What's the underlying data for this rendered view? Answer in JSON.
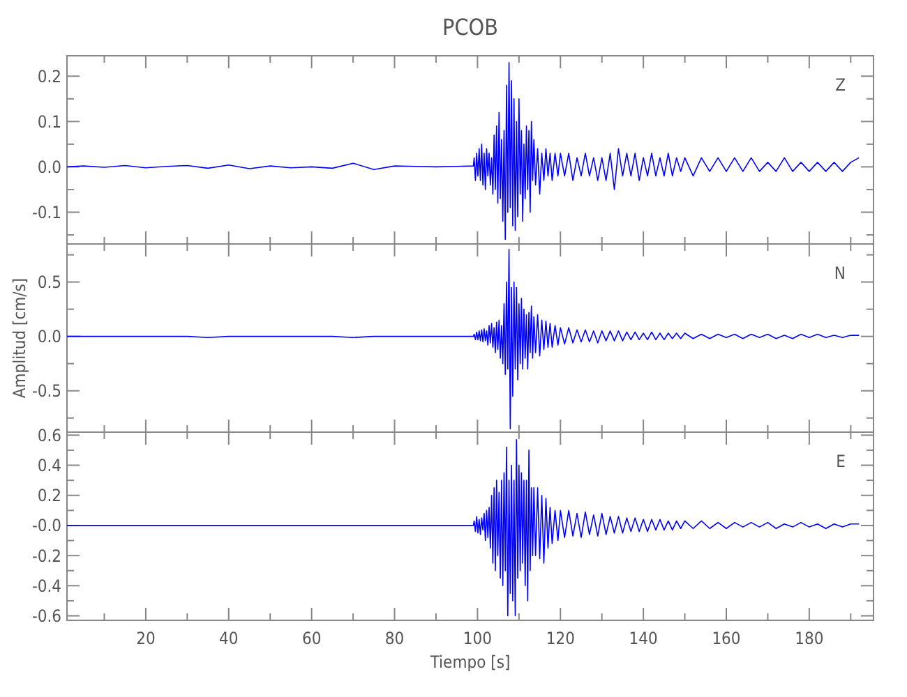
{
  "chart_data": [
    {
      "type": "line",
      "title": "PCOB",
      "annotations": [
        "Z"
      ],
      "tick_labels": "y",
      "x": [
        1,
        5,
        10,
        15,
        20,
        25,
        30,
        35,
        40,
        45,
        50,
        55,
        60,
        65,
        70,
        75,
        80,
        85,
        90,
        95,
        99,
        99.2,
        99.5,
        99.8,
        100.1,
        100.4,
        100.7,
        101,
        101.3,
        101.6,
        101.9,
        102.2,
        102.5,
        102.8,
        103.1,
        103.4,
        103.7,
        104,
        104.3,
        104.6,
        104.9,
        105.2,
        105.5,
        105.8,
        106.1,
        106.4,
        106.7,
        107,
        107.3,
        107.6,
        107.9,
        108.2,
        108.5,
        108.8,
        109.1,
        109.4,
        109.7,
        110,
        110.3,
        110.6,
        110.9,
        111.2,
        111.5,
        111.8,
        112.1,
        112.4,
        112.7,
        113,
        113.3,
        113.6,
        114,
        114.5,
        115,
        115.5,
        116,
        116.5,
        117,
        117.5,
        118,
        118.7,
        119.4,
        120,
        121,
        122,
        123,
        124,
        125,
        126,
        127,
        128,
        129,
        130,
        131,
        132,
        133,
        134,
        135,
        136,
        137,
        138,
        139,
        140,
        141,
        142,
        143,
        144,
        145,
        146,
        147,
        148,
        149,
        150,
        152,
        154,
        156,
        158,
        160,
        162,
        164,
        166,
        168,
        170,
        172,
        174,
        176,
        178,
        180,
        182,
        184,
        186,
        188,
        190,
        192
      ],
      "series": [
        {
          "color": "#0000ff",
          "values": [
            0,
            0.002,
            -0.001,
            0.003,
            -0.002,
            0.001,
            0.003,
            -0.003,
            0.004,
            -0.004,
            0.002,
            -0.002,
            0,
            -0.003,
            0.008,
            -0.006,
            0.002,
            0.001,
            0,
            0.001,
            0.002,
            0.02,
            -0.03,
            0.03,
            -0.02,
            0.04,
            -0.03,
            0.05,
            -0.04,
            0.03,
            -0.05,
            0.04,
            -0.02,
            0.03,
            -0.04,
            0.02,
            -0.06,
            0.07,
            -0.05,
            0.09,
            -0.08,
            0.12,
            -0.07,
            0.06,
            -0.12,
            0.08,
            -0.16,
            0.18,
            -0.1,
            0.23,
            -0.09,
            0.19,
            -0.13,
            0.15,
            -0.14,
            0.1,
            -0.11,
            0.15,
            -0.06,
            0.08,
            -0.12,
            0.05,
            -0.07,
            0.09,
            -0.05,
            0.08,
            -0.1,
            0.1,
            -0.03,
            0.06,
            -0.04,
            0.04,
            -0.06,
            0.03,
            -0.03,
            0.04,
            -0.02,
            0.03,
            -0.03,
            0.03,
            -0.02,
            0.03,
            -0.02,
            0.03,
            -0.03,
            0.02,
            -0.02,
            0.03,
            -0.02,
            0.02,
            -0.03,
            0.02,
            -0.03,
            0.03,
            -0.05,
            0.04,
            -0.02,
            0.03,
            -0.02,
            0.03,
            -0.03,
            0.02,
            -0.02,
            0.03,
            -0.02,
            0.02,
            -0.02,
            0.03,
            -0.02,
            0.02,
            -0.01,
            0.02,
            -0.02,
            0.02,
            -0.01,
            0.02,
            -0.01,
            0.02,
            -0.01,
            0.02,
            -0.01,
            0.01,
            -0.01,
            0.02,
            -0.01,
            0.01,
            -0.01,
            0.01,
            -0.01,
            0.01,
            -0.01,
            0.01,
            0.02
          ]
        }
      ],
      "xlim": [
        1,
        195.5
      ],
      "ylim": [
        -0.17,
        0.245
      ],
      "xticks": [
        {
          "value": 10,
          "label": null
        },
        20,
        {
          "value": 30,
          "label": null
        },
        40,
        {
          "value": 50,
          "label": null
        },
        60,
        {
          "value": 70,
          "label": null
        },
        80,
        {
          "value": 90,
          "label": null
        },
        100,
        {
          "value": 110,
          "label": null
        },
        120,
        {
          "value": 130,
          "label": null
        },
        140,
        {
          "value": 150,
          "label": null
        },
        160,
        {
          "value": 170,
          "label": null
        },
        180,
        {
          "value": 190,
          "label": null
        }
      ],
      "yticks": [
        {
          "value": -0.15,
          "label": null
        },
        -0.1,
        {
          "value": -0.05,
          "label": null
        },
        {
          "value": 0,
          "label": "0.0"
        },
        {
          "value": 0.05,
          "label": null
        },
        0.1,
        {
          "value": 0.15,
          "label": null
        },
        0.2
      ]
    },
    {
      "type": "line",
      "ylabel": "Amplitud [cm/s]",
      "annotations": [
        "N"
      ],
      "tick_labels": "y",
      "x": [
        1,
        5,
        10,
        15,
        20,
        25,
        30,
        35,
        40,
        45,
        50,
        55,
        60,
        65,
        70,
        75,
        80,
        85,
        90,
        95,
        99,
        99.2,
        99.5,
        99.8,
        100.1,
        100.4,
        100.7,
        101,
        101.3,
        101.6,
        101.9,
        102.2,
        102.5,
        102.8,
        103.1,
        103.4,
        103.7,
        104,
        104.3,
        104.6,
        104.9,
        105.2,
        105.5,
        105.8,
        106.1,
        106.4,
        106.7,
        107,
        107.3,
        107.6,
        107.9,
        108.2,
        108.5,
        108.8,
        109.1,
        109.4,
        109.7,
        110,
        110.3,
        110.6,
        110.9,
        111.2,
        111.5,
        111.8,
        112.1,
        112.4,
        112.7,
        113,
        113.3,
        113.6,
        114,
        114.5,
        115,
        115.5,
        116,
        116.5,
        117,
        117.5,
        118,
        118.7,
        119.4,
        120,
        121,
        122,
        123,
        124,
        125,
        126,
        127,
        128,
        129,
        130,
        131,
        132,
        133,
        134,
        135,
        136,
        137,
        138,
        139,
        140,
        141,
        142,
        143,
        144,
        145,
        146,
        147,
        148,
        149,
        150,
        152,
        154,
        156,
        158,
        160,
        162,
        164,
        166,
        168,
        170,
        172,
        174,
        176,
        178,
        180,
        182,
        184,
        186,
        188,
        190,
        192
      ],
      "series": [
        {
          "color": "#0000ff",
          "values": [
            0,
            0,
            0,
            0,
            0,
            0,
            0,
            -0.01,
            0,
            0,
            0,
            0,
            0,
            0,
            -0.01,
            0,
            0,
            0,
            0,
            0,
            0,
            0.02,
            -0.03,
            0.04,
            -0.03,
            0.05,
            -0.04,
            0.06,
            -0.05,
            0.07,
            -0.04,
            0.05,
            -0.08,
            0.1,
            -0.06,
            0.12,
            -0.1,
            0.08,
            -0.15,
            0.13,
            -0.12,
            0.15,
            -0.2,
            0.1,
            -0.25,
            0.3,
            -0.35,
            0.5,
            -0.3,
            0.8,
            -0.85,
            0.45,
            -0.55,
            0.5,
            -0.3,
            0.45,
            -0.4,
            0.3,
            -0.25,
            0.35,
            -0.3,
            0.25,
            -0.2,
            0.2,
            -0.3,
            0.22,
            -0.15,
            0.28,
            -0.2,
            0.18,
            -0.15,
            0.2,
            -0.18,
            0.15,
            -0.12,
            0.14,
            -0.1,
            0.12,
            -0.1,
            0.1,
            -0.08,
            0.08,
            -0.07,
            0.08,
            -0.06,
            0.06,
            -0.05,
            0.06,
            -0.05,
            0.05,
            -0.06,
            0.05,
            -0.04,
            0.05,
            -0.04,
            0.05,
            -0.04,
            0.04,
            -0.03,
            0.04,
            -0.03,
            0.03,
            -0.03,
            0.04,
            -0.03,
            0.03,
            -0.03,
            0.03,
            -0.02,
            0.03,
            -0.02,
            0.03,
            -0.02,
            0.02,
            -0.02,
            0.02,
            -0.01,
            0.02,
            -0.02,
            0.02,
            -0.01,
            0.02,
            -0.02,
            0.01,
            -0.02,
            0.02,
            -0.01,
            0.02,
            -0.01,
            0.01,
            -0.01,
            0.01,
            0.01
          ]
        }
      ],
      "xlim": [
        1,
        195.5
      ],
      "ylim": [
        -0.88,
        0.85
      ],
      "xticks": [
        {
          "value": 10,
          "label": null
        },
        20,
        {
          "value": 30,
          "label": null
        },
        40,
        {
          "value": 50,
          "label": null
        },
        60,
        {
          "value": 70,
          "label": null
        },
        80,
        {
          "value": 90,
          "label": null
        },
        100,
        {
          "value": 110,
          "label": null
        },
        120,
        {
          "value": 130,
          "label": null
        },
        140,
        {
          "value": 150,
          "label": null
        },
        160,
        {
          "value": 170,
          "label": null
        },
        180,
        {
          "value": 190,
          "label": null
        }
      ],
      "yticks": [
        {
          "value": -0.75,
          "label": null
        },
        -0.5,
        {
          "value": -0.25,
          "label": null
        },
        {
          "value": 0,
          "label": "0.0"
        },
        {
          "value": 0.25,
          "label": null
        },
        0.5,
        {
          "value": 0.75,
          "label": null
        }
      ]
    },
    {
      "type": "line",
      "xlabel": "Tiempo [s]",
      "annotations": [
        "E"
      ],
      "x": [
        1,
        5,
        10,
        15,
        20,
        25,
        30,
        35,
        40,
        45,
        50,
        55,
        60,
        65,
        70,
        75,
        80,
        85,
        90,
        95,
        99,
        99.2,
        99.5,
        99.8,
        100.1,
        100.4,
        100.7,
        101,
        101.3,
        101.6,
        101.9,
        102.2,
        102.5,
        102.8,
        103.1,
        103.4,
        103.7,
        104,
        104.3,
        104.6,
        104.9,
        105.2,
        105.5,
        105.8,
        106.1,
        106.4,
        106.7,
        107,
        107.3,
        107.6,
        107.9,
        108.2,
        108.5,
        108.8,
        109.1,
        109.4,
        109.7,
        110,
        110.3,
        110.6,
        110.9,
        111.2,
        111.5,
        111.8,
        112.1,
        112.4,
        112.7,
        113,
        113.3,
        113.6,
        114,
        114.5,
        115,
        115.5,
        116,
        116.5,
        117,
        117.5,
        118,
        118.7,
        119.4,
        120,
        121,
        122,
        123,
        124,
        125,
        126,
        127,
        128,
        129,
        130,
        131,
        132,
        133,
        134,
        135,
        136,
        137,
        138,
        139,
        140,
        141,
        142,
        143,
        144,
        145,
        146,
        147,
        148,
        149,
        150,
        152,
        154,
        156,
        158,
        160,
        162,
        164,
        166,
        168,
        170,
        172,
        174,
        176,
        178,
        180,
        182,
        184,
        186,
        188,
        190,
        192
      ],
      "series": [
        {
          "color": "#0000ff",
          "values": [
            0,
            0,
            0,
            0,
            0,
            0,
            0,
            0,
            0,
            0,
            0,
            0,
            0,
            0,
            0,
            0,
            0,
            0,
            0,
            0,
            0,
            0.03,
            -0.04,
            0.06,
            -0.05,
            0.04,
            -0.06,
            0.05,
            -0.03,
            0.08,
            -0.1,
            0.1,
            -0.08,
            0.12,
            -0.15,
            0.2,
            -0.25,
            0.25,
            -0.3,
            0.3,
            -0.2,
            0.22,
            -0.35,
            0.3,
            -0.4,
            0.35,
            -0.3,
            0.52,
            -0.6,
            0.3,
            -0.45,
            0.4,
            -0.5,
            0.3,
            -0.6,
            0.57,
            -0.35,
            0.4,
            -0.3,
            0.35,
            -0.25,
            0.3,
            -0.4,
            0.3,
            -0.5,
            0.5,
            -0.3,
            0.25,
            -0.2,
            0.25,
            -0.2,
            0.25,
            -0.22,
            0.2,
            -0.25,
            0.18,
            -0.15,
            0.12,
            -0.12,
            0.1,
            -0.1,
            0.1,
            -0.08,
            0.1,
            -0.07,
            0.08,
            -0.08,
            0.09,
            -0.06,
            0.07,
            -0.07,
            0.08,
            -0.06,
            0.06,
            -0.05,
            0.06,
            -0.05,
            0.05,
            -0.04,
            0.05,
            -0.04,
            0.04,
            -0.04,
            0.04,
            -0.03,
            0.04,
            -0.03,
            0.03,
            -0.03,
            0.03,
            -0.02,
            0.03,
            -0.02,
            0.03,
            -0.02,
            0.02,
            -0.02,
            0.02,
            -0.01,
            0.02,
            -0.01,
            0.02,
            -0.02,
            0.01,
            -0.01,
            0.02,
            -0.01,
            0.01,
            -0.02,
            0.01,
            -0.01,
            0.01,
            0.01
          ]
        }
      ],
      "xlim": [
        1,
        195.5
      ],
      "ylim": [
        -0.63,
        0.62
      ],
      "xticks": [
        {
          "value": 10,
          "label": null
        },
        20,
        {
          "value": 30,
          "label": null
        },
        40,
        {
          "value": 50,
          "label": null
        },
        60,
        {
          "value": 70,
          "label": null
        },
        80,
        {
          "value": 90,
          "label": null
        },
        100,
        {
          "value": 110,
          "label": null
        },
        120,
        {
          "value": 130,
          "label": null
        },
        140,
        {
          "value": 150,
          "label": null
        },
        160,
        {
          "value": 170,
          "label": null
        },
        180,
        {
          "value": 190,
          "label": null
        }
      ],
      "yticks": [
        -0.6,
        {
          "value": -0.5,
          "label": null
        },
        -0.4,
        {
          "value": -0.3,
          "label": null
        },
        -0.2,
        {
          "value": -0.1,
          "label": null
        },
        {
          "value": 0,
          "label": "-0.0"
        },
        {
          "value": 0.1,
          "label": null
        },
        0.2,
        {
          "value": 0.3,
          "label": null
        },
        0.4,
        {
          "value": 0.5,
          "label": null
        },
        0.6
      ]
    }
  ]
}
